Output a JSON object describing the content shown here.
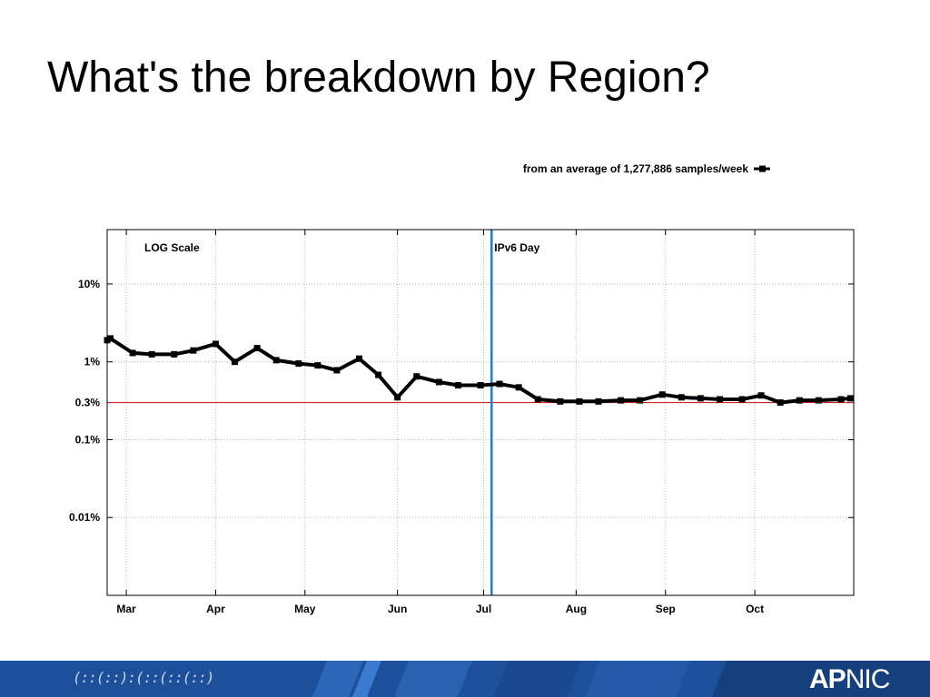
{
  "slide": {
    "title": "What's the breakdown by Region?"
  },
  "footer": {
    "left_logo_text": "(::(::):(::(::(::)",
    "brand_bold": "AP",
    "brand_regular": "NIC",
    "colors": {
      "bar": "#1d4f9a",
      "band_light": "#2f6fc4",
      "band_dark": "#163f7d"
    }
  },
  "chart_data": {
    "type": "line",
    "title": "",
    "legend": {
      "label": "from an average of 1,277,886 samples/week",
      "position": "top-right"
    },
    "annotations": [
      {
        "id": "log-scale",
        "text": "LOG Scale"
      },
      {
        "id": "ipv6-day",
        "text": "IPv6 Day",
        "x": 114.5,
        "color": "#1b7ed4"
      }
    ],
    "reference_line": {
      "y": 0.3,
      "color": "#d62020"
    },
    "y_scale": "log",
    "ylim": [
      0.001,
      50
    ],
    "xlim": [
      -6,
      228
    ],
    "yticks": [
      {
        "value": 10,
        "label": "10%"
      },
      {
        "value": 1,
        "label": "1%"
      },
      {
        "value": 0.3,
        "label": "0.3%"
      },
      {
        "value": 0.1,
        "label": "0.1%"
      },
      {
        "value": 0.01,
        "label": "0.01%"
      }
    ],
    "xticks": [
      {
        "value": 0,
        "label": "Mar"
      },
      {
        "value": 28,
        "label": "Apr"
      },
      {
        "value": 56,
        "label": "May"
      },
      {
        "value": 85,
        "label": "Jun"
      },
      {
        "value": 112,
        "label": "Jul"
      },
      {
        "value": 141,
        "label": "Aug"
      },
      {
        "value": 169,
        "label": "Sep"
      },
      {
        "value": 197,
        "label": "Oct"
      }
    ],
    "series": [
      {
        "name": "from an average of 1,277,886 samples/week",
        "color": "#000000",
        "x": [
          -6,
          -5,
          2,
          8,
          15,
          21,
          28,
          34,
          41,
          47,
          54,
          60,
          66,
          73,
          79,
          85,
          91,
          98,
          104,
          111,
          117,
          123,
          129,
          136,
          142,
          148,
          155,
          161,
          168,
          174,
          180,
          186,
          193,
          199,
          205,
          211,
          217,
          224,
          227
        ],
        "values": [
          1.9,
          2.0,
          1.3,
          1.25,
          1.25,
          1.4,
          1.7,
          1.0,
          1.5,
          1.05,
          0.95,
          0.9,
          0.78,
          1.1,
          0.68,
          0.35,
          0.65,
          0.55,
          0.5,
          0.5,
          0.52,
          0.47,
          0.33,
          0.31,
          0.31,
          0.31,
          0.32,
          0.32,
          0.38,
          0.35,
          0.34,
          0.33,
          0.33,
          0.37,
          0.3,
          0.32,
          0.32,
          0.33,
          0.34
        ]
      }
    ]
  }
}
